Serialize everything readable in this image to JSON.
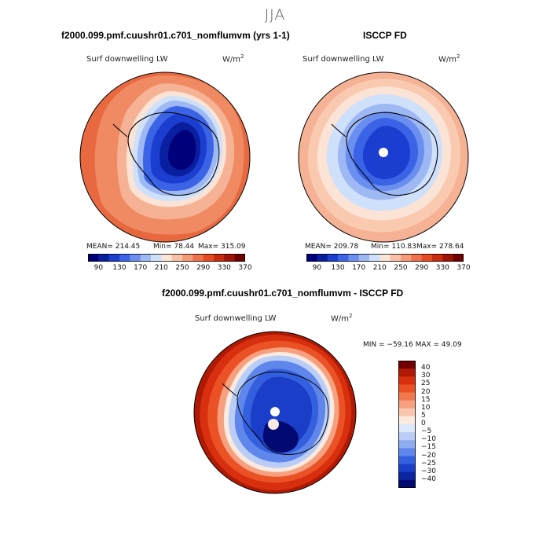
{
  "title": "JJA",
  "panels": [
    {
      "title": "f2000.099.pmf.cuushr01.c701_nomflumvm (yrs 1-1)",
      "variable": "Surf downwelling LW",
      "units": "W/m",
      "units_sup": "2",
      "stats": {
        "mean": "MEAN= 214.45",
        "min": "Min=  78.44",
        "max": "Max= 315.09"
      }
    },
    {
      "title": "ISCCP FD",
      "variable": "Surf downwelling LW",
      "units": "W/m",
      "units_sup": "2",
      "stats": {
        "mean": "MEAN= 209.78",
        "min": "Min= 110.83",
        "max": "Max= 278.64"
      }
    },
    {
      "title": "f2000.099.pmf.cuushr01.c701_nomflumvm - ISCCP FD",
      "variable": "Surf downwelling LW",
      "units": "W/m",
      "units_sup": "2",
      "minmax": "MIN = −59.16  MAX =  49.09"
    }
  ],
  "colorbar_abs": {
    "colors": [
      "#00007a",
      "#0a1fa0",
      "#1b3dd0",
      "#3a63e6",
      "#6b8fee",
      "#9db8f3",
      "#cfe0fb",
      "#fbe3d6",
      "#f8c0a4",
      "#f59a76",
      "#ef7049",
      "#e64a21",
      "#c92b0c",
      "#9e1305",
      "#700000"
    ],
    "tick_labels": [
      "90",
      "130",
      "170",
      "210",
      "250",
      "290",
      "330",
      "370"
    ]
  },
  "colorbar_diff": {
    "colors": [
      "#700000",
      "#b01a05",
      "#d8300f",
      "#ea5226",
      "#f2794f",
      "#f6a07f",
      "#f9c7b0",
      "#fbeae0",
      "#dce8fb",
      "#b9cdf6",
      "#8eacf0",
      "#5f86ea",
      "#3460e0",
      "#1a3ec8",
      "#0b24a0",
      "#020a72"
    ],
    "tick_labels": [
      "40",
      "30",
      "25",
      "20",
      "15",
      "10",
      "5",
      "0",
      "−5",
      "−10",
      "−15",
      "−20",
      "−25",
      "−30",
      "−40"
    ]
  }
}
